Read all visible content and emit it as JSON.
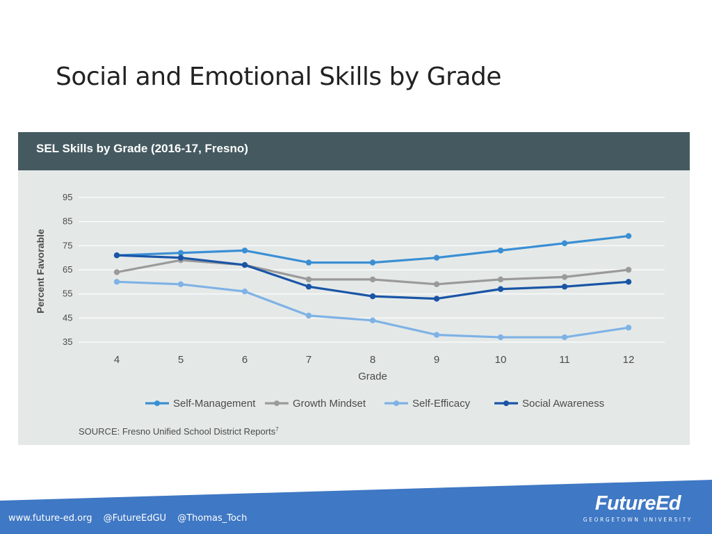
{
  "slide": {
    "title": "Social and Emotional Skills by Grade"
  },
  "chart_data": {
    "type": "line",
    "title": "SEL Skills by Grade (2016-17, Fresno)",
    "xlabel": "Grade",
    "ylabel": "Percent Favorable",
    "categories": [
      "4",
      "5",
      "6",
      "7",
      "8",
      "9",
      "10",
      "11",
      "12"
    ],
    "yticks": [
      35,
      45,
      55,
      65,
      75,
      85,
      95
    ],
    "ylim": [
      35,
      95
    ],
    "grid": true,
    "legend_position": "bottom",
    "series": [
      {
        "name": "Self-Management",
        "color": "#3a8fd4",
        "values": [
          71,
          72,
          73,
          68,
          68,
          70,
          73,
          76,
          79
        ]
      },
      {
        "name": "Growth Mindset",
        "color": "#9a9a9a",
        "values": [
          64,
          69,
          67,
          61,
          61,
          59,
          61,
          62,
          65
        ]
      },
      {
        "name": "Self-Efficacy",
        "color": "#7fb2e5",
        "values": [
          60,
          59,
          56,
          46,
          44,
          38,
          37,
          37,
          41
        ]
      },
      {
        "name": "Social Awareness",
        "color": "#1a55a6",
        "values": [
          71,
          70,
          67,
          58,
          54,
          53,
          57,
          58,
          60
        ]
      }
    ],
    "source": "SOURCE: Fresno Unified School District Reports",
    "source_note": "7"
  },
  "footer": {
    "links": [
      "www.future-ed.org",
      "@FutureEdGU",
      "@Thomas_Toch"
    ],
    "logo_name": "FutureEd",
    "logo_sub": "GEORGETOWN UNIVERSITY",
    "band_color": "#3f78c4"
  }
}
